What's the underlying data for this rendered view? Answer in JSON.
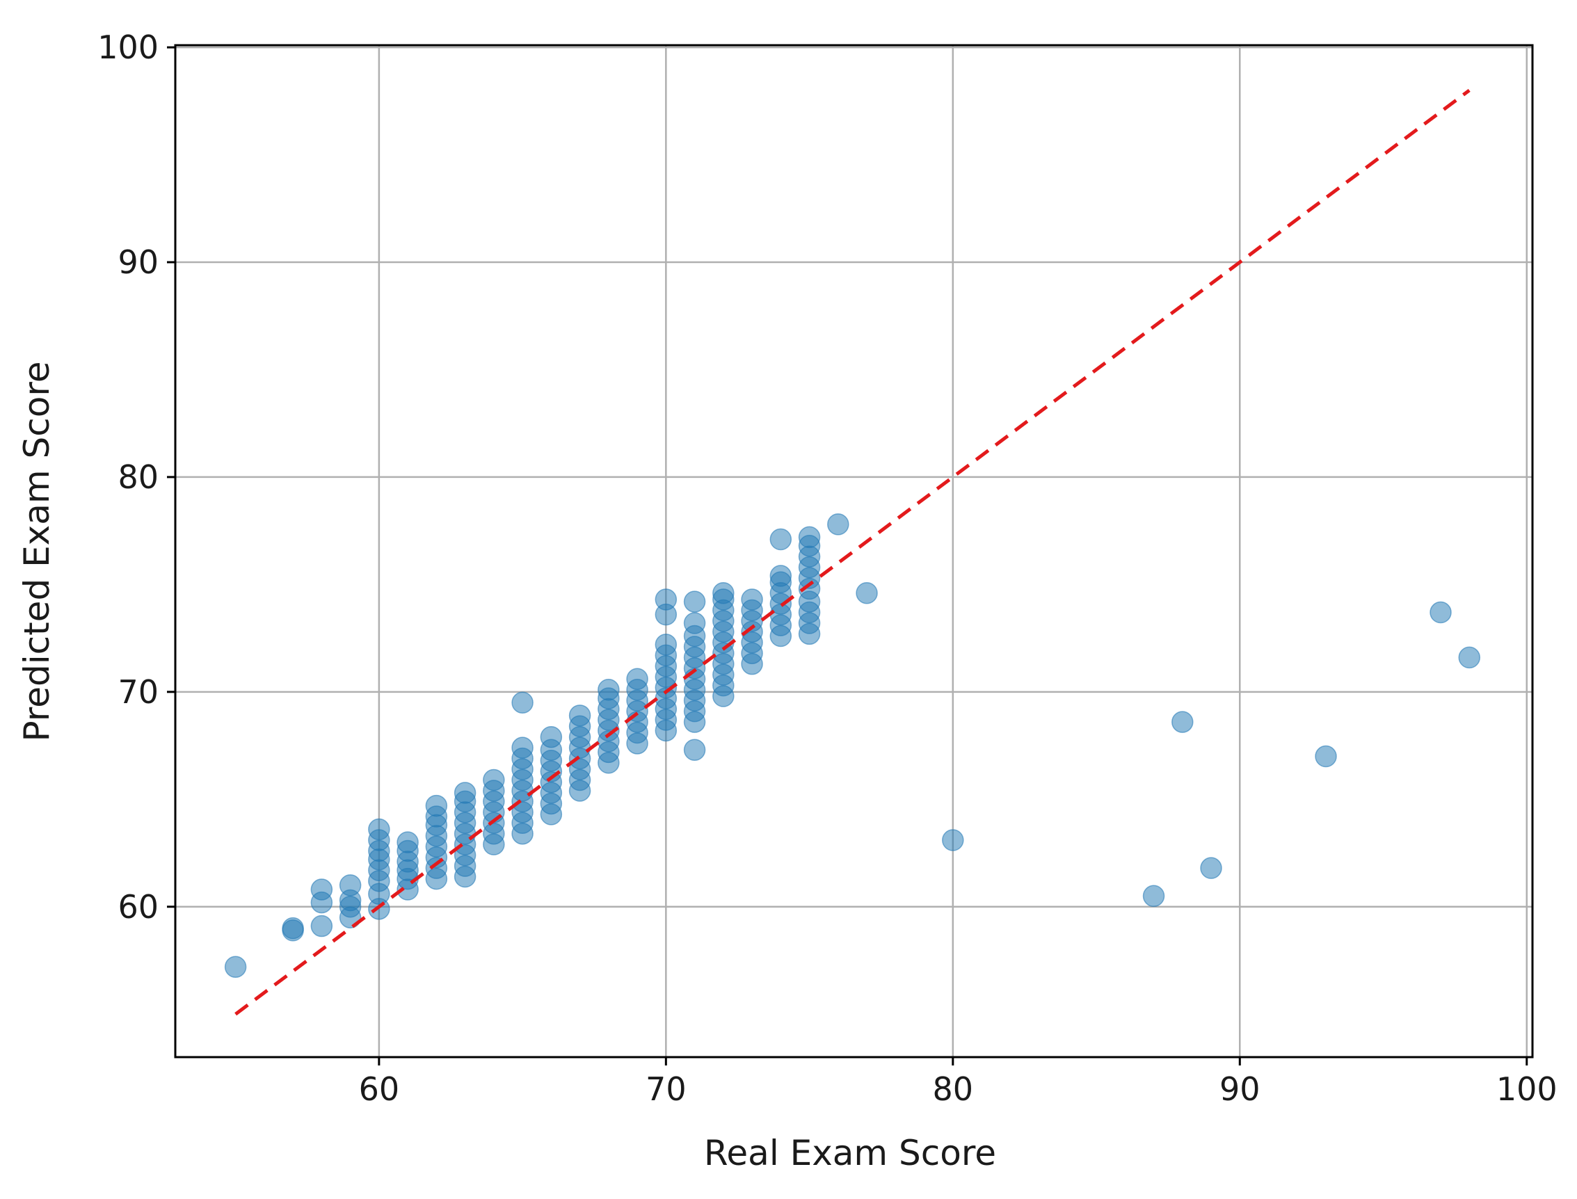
{
  "chart_data": {
    "type": "scatter",
    "title": "",
    "xlabel": "Real Exam Score",
    "ylabel": "Predicted Exam Score",
    "xlim": [
      52.9,
      100.2
    ],
    "ylim": [
      53.0,
      100.1
    ],
    "xticks": [
      60,
      70,
      80,
      90,
      100
    ],
    "yticks": [
      60,
      70,
      80,
      90,
      100
    ],
    "xtick_labels": [
      "60",
      "70",
      "80",
      "90",
      "100"
    ],
    "ytick_labels": [
      "60",
      "70",
      "80",
      "90",
      "100"
    ],
    "grid": true,
    "legend": "none",
    "colors": {
      "points": "#1f77b4",
      "reference_line": "#e31a1c",
      "grid": "#b0b0b0",
      "axes": "#000000"
    },
    "point_alpha": 0.5,
    "reference_line": {
      "style": "dashed",
      "from": [
        55,
        55
      ],
      "to": [
        98,
        98
      ]
    },
    "series": [
      {
        "points": [
          [
            55,
            57.2
          ],
          [
            57,
            58.9
          ],
          [
            57,
            59.0
          ],
          [
            58,
            59.1
          ],
          [
            58,
            60.2
          ],
          [
            58,
            60.8
          ],
          [
            59,
            59.5
          ],
          [
            59,
            60.0
          ],
          [
            59,
            60.3
          ],
          [
            59,
            61.0
          ],
          [
            60,
            59.9
          ],
          [
            60,
            60.6
          ],
          [
            60,
            61.2
          ],
          [
            60,
            61.7
          ],
          [
            60,
            62.2
          ],
          [
            60,
            62.6
          ],
          [
            60,
            63.1
          ],
          [
            60,
            63.6
          ],
          [
            61,
            60.8
          ],
          [
            61,
            61.3
          ],
          [
            61,
            61.7
          ],
          [
            61,
            62.1
          ],
          [
            61,
            62.6
          ],
          [
            61,
            63.0
          ],
          [
            62,
            61.3
          ],
          [
            62,
            61.8
          ],
          [
            62,
            62.3
          ],
          [
            62,
            62.8
          ],
          [
            62,
            63.3
          ],
          [
            62,
            63.8
          ],
          [
            62,
            64.2
          ],
          [
            62,
            64.7
          ],
          [
            63,
            61.4
          ],
          [
            63,
            61.9
          ],
          [
            63,
            62.4
          ],
          [
            63,
            62.9
          ],
          [
            63,
            63.4
          ],
          [
            63,
            63.9
          ],
          [
            63,
            64.4
          ],
          [
            63,
            64.9
          ],
          [
            63,
            65.3
          ],
          [
            64,
            62.9
          ],
          [
            64,
            63.4
          ],
          [
            64,
            63.9
          ],
          [
            64,
            64.4
          ],
          [
            64,
            64.9
          ],
          [
            64,
            65.4
          ],
          [
            64,
            65.9
          ],
          [
            65,
            63.4
          ],
          [
            65,
            63.9
          ],
          [
            65,
            64.4
          ],
          [
            65,
            64.9
          ],
          [
            65,
            65.4
          ],
          [
            65,
            65.9
          ],
          [
            65,
            66.4
          ],
          [
            65,
            66.9
          ],
          [
            65,
            67.4
          ],
          [
            65,
            69.5
          ],
          [
            66,
            64.3
          ],
          [
            66,
            64.8
          ],
          [
            66,
            65.3
          ],
          [
            66,
            65.8
          ],
          [
            66,
            66.3
          ],
          [
            66,
            66.8
          ],
          [
            66,
            67.3
          ],
          [
            66,
            67.9
          ],
          [
            67,
            65.4
          ],
          [
            67,
            65.9
          ],
          [
            67,
            66.4
          ],
          [
            67,
            66.9
          ],
          [
            67,
            67.4
          ],
          [
            67,
            67.9
          ],
          [
            67,
            68.4
          ],
          [
            67,
            68.9
          ],
          [
            68,
            66.7
          ],
          [
            68,
            67.2
          ],
          [
            68,
            67.7
          ],
          [
            68,
            68.2
          ],
          [
            68,
            68.7
          ],
          [
            68,
            69.2
          ],
          [
            68,
            69.7
          ],
          [
            68,
            70.1
          ],
          [
            69,
            67.6
          ],
          [
            69,
            68.1
          ],
          [
            69,
            68.6
          ],
          [
            69,
            69.1
          ],
          [
            69,
            69.6
          ],
          [
            69,
            70.1
          ],
          [
            69,
            70.6
          ],
          [
            70,
            68.2
          ],
          [
            70,
            68.7
          ],
          [
            70,
            69.2
          ],
          [
            70,
            69.7
          ],
          [
            70,
            70.2
          ],
          [
            70,
            70.7
          ],
          [
            70,
            71.2
          ],
          [
            70,
            71.7
          ],
          [
            70,
            72.2
          ],
          [
            70,
            73.6
          ],
          [
            70,
            74.3
          ],
          [
            71,
            67.3
          ],
          [
            71,
            68.6
          ],
          [
            71,
            69.1
          ],
          [
            71,
            69.6
          ],
          [
            71,
            70.1
          ],
          [
            71,
            70.6
          ],
          [
            71,
            71.1
          ],
          [
            71,
            71.6
          ],
          [
            71,
            72.1
          ],
          [
            71,
            72.6
          ],
          [
            71,
            73.2
          ],
          [
            71,
            74.2
          ],
          [
            72,
            69.8
          ],
          [
            72,
            70.3
          ],
          [
            72,
            70.8
          ],
          [
            72,
            71.3
          ],
          [
            72,
            71.8
          ],
          [
            72,
            72.3
          ],
          [
            72,
            72.8
          ],
          [
            72,
            73.3
          ],
          [
            72,
            73.8
          ],
          [
            72,
            74.3
          ],
          [
            72,
            74.6
          ],
          [
            73,
            71.3
          ],
          [
            73,
            71.8
          ],
          [
            73,
            72.3
          ],
          [
            73,
            72.8
          ],
          [
            73,
            73.3
          ],
          [
            73,
            73.8
          ],
          [
            73,
            74.3
          ],
          [
            74,
            72.6
          ],
          [
            74,
            73.1
          ],
          [
            74,
            73.6
          ],
          [
            74,
            74.1
          ],
          [
            74,
            74.6
          ],
          [
            74,
            75.1
          ],
          [
            74,
            75.4
          ],
          [
            74,
            77.1
          ],
          [
            75,
            72.7
          ],
          [
            75,
            73.2
          ],
          [
            75,
            73.7
          ],
          [
            75,
            74.2
          ],
          [
            75,
            74.8
          ],
          [
            75,
            75.3
          ],
          [
            75,
            75.8
          ],
          [
            75,
            76.3
          ],
          [
            75,
            76.8
          ],
          [
            75,
            77.2
          ],
          [
            76,
            77.8
          ],
          [
            77,
            74.6
          ],
          [
            80,
            63.1
          ],
          [
            87,
            60.5
          ],
          [
            88,
            68.6
          ],
          [
            89,
            61.8
          ],
          [
            93,
            67.0
          ],
          [
            97,
            73.7
          ],
          [
            98,
            71.6
          ]
        ]
      }
    ]
  }
}
